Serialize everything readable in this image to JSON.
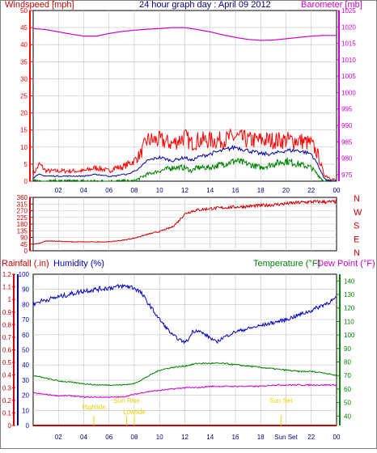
{
  "colors": {
    "wind_avg": "#0000a0",
    "wind_gust": "#ff0000",
    "wind_min": "#008000",
    "barometer": "#cc00cc",
    "direction": "#cc0000",
    "humidity": "#0000c0",
    "temperature": "#008000",
    "dewpoint": "#cc00cc",
    "rain": "#cc0000",
    "events": "#e8d000",
    "grid": "#c0c0c0"
  },
  "chart_data": [
    {
      "type": "line",
      "title": "24 hour graph day : April 09 2012",
      "left_axis_label": "Windspeed [mph]",
      "right_axis_label": "Barometer [mb]",
      "x_tick_labels": [
        "02",
        "04",
        "06",
        "08",
        "10",
        "12",
        "14",
        "16",
        "18",
        "20",
        "22",
        "00"
      ],
      "left_ticks": [
        "0",
        "5",
        "10",
        "15",
        "20",
        "25",
        "30",
        "35",
        "40",
        "45",
        "50"
      ],
      "left_range": [
        0,
        50
      ],
      "right_ticks": [
        "975",
        "980",
        "985",
        "990",
        "995",
        "1000",
        "1005",
        "1010",
        "1015",
        "1020",
        "1025"
      ],
      "right_range": [
        973,
        1025
      ],
      "x_range_hours": [
        0,
        24
      ],
      "series": [
        {
          "key": "gust",
          "axis": "left",
          "x": [
            0,
            0.5,
            1,
            2,
            3,
            4,
            5,
            6,
            6.5,
            7,
            7.5,
            8,
            8.5,
            9,
            10,
            11,
            12,
            12.5,
            13,
            14,
            15,
            16,
            17,
            18,
            19,
            20,
            21,
            22,
            22.5,
            23,
            23.5,
            24
          ],
          "y": [
            2,
            5,
            3,
            3,
            3,
            3,
            4,
            3,
            4,
            4,
            5,
            6,
            8,
            12,
            12,
            11,
            13,
            11,
            12,
            12,
            12,
            13,
            12,
            12,
            12,
            12,
            12,
            11,
            8,
            2,
            1,
            0
          ]
        },
        {
          "key": "avg",
          "axis": "left",
          "x": [
            0,
            0.5,
            1,
            2,
            3,
            4,
            5,
            6,
            6.5,
            7,
            7.5,
            8,
            8.5,
            9,
            10,
            11,
            12,
            12.5,
            13,
            14,
            15,
            16,
            17,
            18,
            19,
            20,
            21,
            22,
            22.5,
            23,
            23.5,
            24
          ],
          "y": [
            1,
            2,
            1.5,
            1.5,
            1.5,
            1.5,
            2,
            1.5,
            1.5,
            2,
            2,
            3,
            4,
            6,
            7,
            6,
            7,
            6,
            7,
            8,
            9,
            10,
            9,
            8,
            8,
            9,
            9,
            8,
            5,
            1,
            0,
            0
          ]
        },
        {
          "key": "min",
          "axis": "left",
          "x": [
            0,
            0.5,
            1,
            2,
            3,
            4,
            5,
            6,
            6.5,
            7,
            7.5,
            8,
            8.5,
            9,
            10,
            11,
            12,
            12.5,
            13,
            14,
            15,
            16,
            17,
            18,
            19,
            20,
            21,
            22,
            22.5,
            23,
            23.5,
            24
          ],
          "y": [
            0,
            0,
            0,
            0,
            0,
            0,
            0,
            0,
            0,
            0,
            0,
            0,
            1,
            2,
            3,
            4,
            4,
            3,
            4,
            4,
            5,
            6,
            5,
            4,
            5,
            6,
            5,
            4,
            2,
            0,
            0,
            0
          ]
        },
        {
          "key": "baro",
          "axis": "right",
          "x": [
            0,
            1,
            2,
            3,
            4,
            5,
            6,
            7,
            8,
            9,
            10,
            11,
            12,
            13,
            14,
            15,
            16,
            17,
            18,
            19,
            20,
            21,
            22,
            23,
            24
          ],
          "y": [
            1019.5,
            1019.2,
            1018.5,
            1017.8,
            1017.2,
            1017.2,
            1018,
            1018.6,
            1019,
            1019.3,
            1019.5,
            1019.8,
            1019.8,
            1019.2,
            1018.5,
            1017.6,
            1016.8,
            1016.2,
            1015.9,
            1016,
            1016.4,
            1016.8,
            1017.2,
            1017.4,
            1017.4
          ]
        }
      ]
    },
    {
      "type": "line",
      "axis_label": "Wind direction",
      "left_ticks": [
        "0",
        "45",
        "90",
        "135",
        "180",
        "225",
        "270",
        "315",
        "360"
      ],
      "left_range": [
        0,
        360
      ],
      "compass_labels": [
        "N",
        "W",
        "S",
        "E",
        "N"
      ],
      "x_range_hours": [
        0,
        24
      ],
      "series": [
        {
          "key": "dir",
          "x": [
            0,
            0.5,
            1,
            2,
            3,
            4,
            5,
            6,
            7,
            8,
            9,
            10,
            11,
            11.5,
            12,
            12.5,
            13,
            14,
            15,
            16,
            17,
            18,
            19,
            20,
            21,
            22,
            23,
            24
          ],
          "y": [
            45,
            50,
            65,
            65,
            60,
            60,
            60,
            60,
            70,
            85,
            110,
            130,
            160,
            200,
            250,
            265,
            275,
            285,
            290,
            295,
            300,
            305,
            310,
            318,
            325,
            330,
            330,
            330
          ]
        }
      ]
    },
    {
      "type": "line",
      "left_axis_label_1": "Rainfall (.in)",
      "left_axis_label_2": "Humidity (%)",
      "right_axis_label_1": "Temperature (°F)",
      "right_axis_label_2": "Dew Point (°F)",
      "rain_ticks": [
        "0",
        "0.1",
        "0.2",
        "0.3",
        "0.4",
        "0.5",
        "0.6",
        "0.7",
        "0.8",
        "0.9",
        "1",
        "1.1",
        "1.2"
      ],
      "rain_range": [
        0,
        1.2
      ],
      "humidity_ticks": [
        "0",
        "10",
        "20",
        "30",
        "40",
        "50",
        "60",
        "70",
        "80",
        "90",
        "100"
      ],
      "humidity_range": [
        0,
        100
      ],
      "temp_ticks": [
        "40",
        "50",
        "60",
        "70",
        "80",
        "90",
        "100",
        "110",
        "120",
        "130",
        "140"
      ],
      "temp_range": [
        33,
        145
      ],
      "x_tick_labels": [
        "02",
        "04",
        "06",
        "08",
        "10",
        "12",
        "14",
        "16",
        "18",
        "Sun Set",
        "22",
        "00"
      ],
      "x_range_hours": [
        0,
        24
      ],
      "annotations": [
        {
          "label": "Sun Rise",
          "hour": 7.4
        },
        {
          "label": "Hightide",
          "hour": 4.8
        },
        {
          "label": "Lowtide",
          "hour": 8.0
        },
        {
          "label": "Sun Set",
          "hour": 19.6
        }
      ],
      "series": [
        {
          "key": "humidity",
          "axis": "humidity",
          "x": [
            0,
            0.5,
            1,
            2,
            3,
            4,
            5,
            6,
            7,
            7.5,
            8,
            8.5,
            9,
            10,
            11,
            11.5,
            12,
            12.3,
            12.6,
            13,
            14,
            14.5,
            15,
            16,
            17,
            18,
            19,
            20,
            21,
            22,
            23,
            24
          ],
          "y": [
            80,
            82,
            83,
            85,
            87,
            89,
            90,
            91,
            92,
            92,
            91,
            88,
            82,
            70,
            60,
            57,
            55,
            57,
            62,
            63,
            58,
            55,
            58,
            62,
            64,
            66,
            68,
            70,
            73,
            76,
            80,
            84
          ]
        },
        {
          "key": "temp",
          "axis": "temp",
          "x": [
            0,
            1,
            2,
            3,
            4,
            5,
            6,
            7,
            8,
            9,
            10,
            11,
            12,
            13,
            14,
            15,
            16,
            17,
            18,
            19,
            20,
            21,
            22,
            23,
            24
          ],
          "y": [
            70,
            68,
            66,
            65,
            64,
            63,
            63,
            63,
            64,
            69,
            74,
            76,
            77,
            79,
            79,
            79,
            78,
            77,
            76,
            75,
            74,
            73,
            73,
            72,
            70
          ]
        },
        {
          "key": "dew",
          "axis": "temp",
          "x": [
            0,
            1,
            2,
            3,
            4,
            5,
            6,
            7,
            8,
            9,
            10,
            11,
            12,
            13,
            14,
            15,
            16,
            17,
            18,
            19,
            20,
            21,
            22,
            23,
            24
          ],
          "y": [
            57,
            56,
            55,
            55,
            54,
            54,
            54,
            54,
            56,
            58,
            59,
            60,
            61,
            61,
            62,
            62,
            62,
            62,
            62,
            63,
            63,
            63,
            63,
            63,
            63
          ]
        },
        {
          "key": "rain",
          "axis": "rain",
          "x": [
            0,
            24
          ],
          "y": [
            0,
            0
          ]
        }
      ]
    }
  ]
}
